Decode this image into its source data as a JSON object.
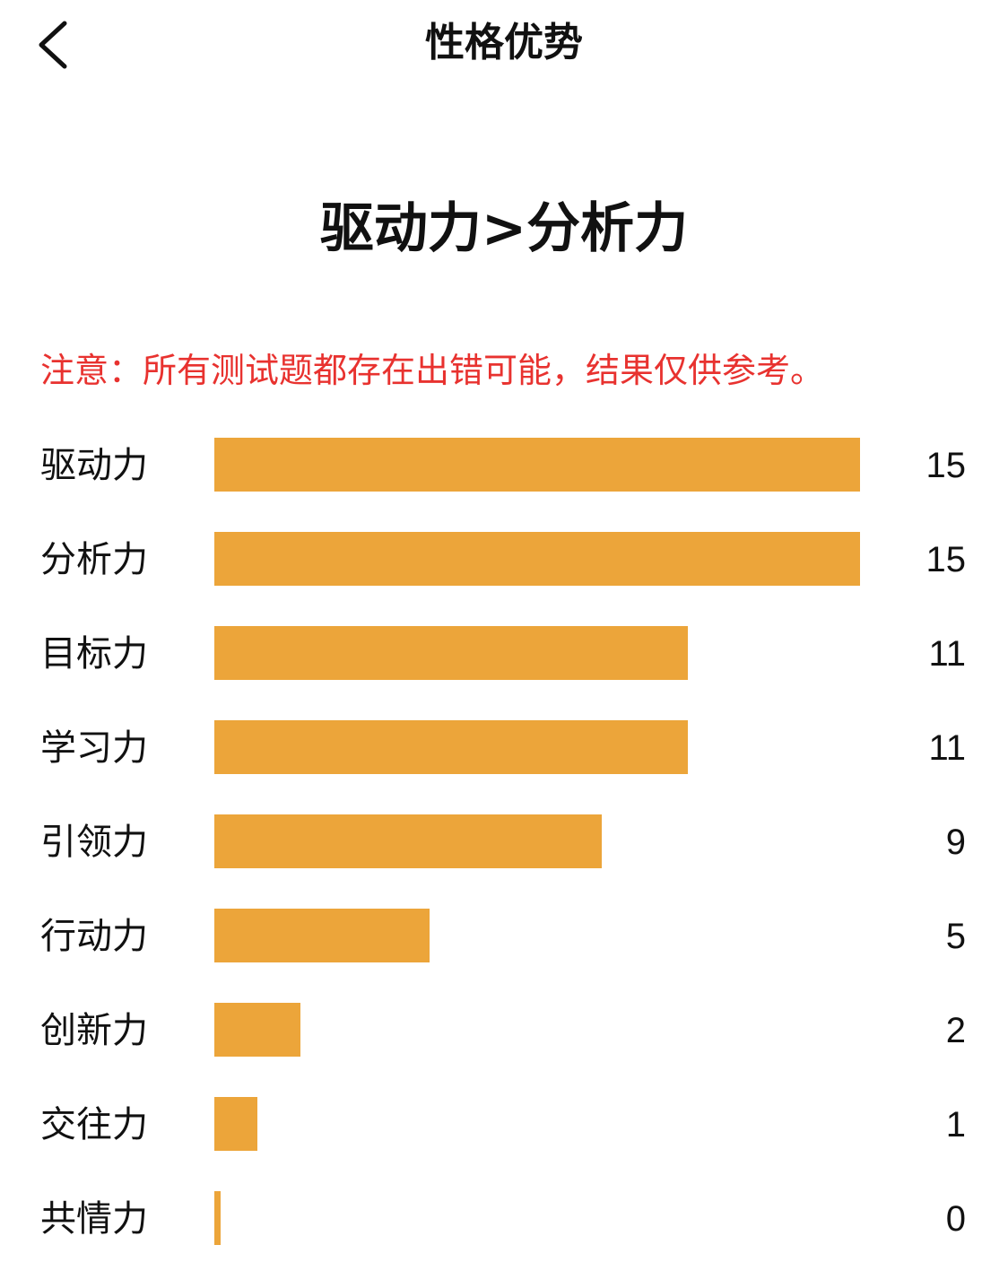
{
  "nav": {
    "title": "性格优势",
    "back_icon": "chevron-left-icon"
  },
  "headline": "驱动力>分析力",
  "notice": "注意：所有测试题都存在出错可能，结果仅供参考。",
  "colors": {
    "bar": "#eca53a",
    "notice": "#e8322f",
    "text": "#111111"
  },
  "chart_data": {
    "type": "bar",
    "orientation": "horizontal",
    "categories": [
      "驱动力",
      "分析力",
      "目标力",
      "学习力",
      "引领力",
      "行动力",
      "创新力",
      "交往力",
      "共情力"
    ],
    "values": [
      15,
      15,
      11,
      11,
      9,
      5,
      2,
      1,
      0
    ],
    "xlim": [
      0,
      15
    ],
    "grid": false,
    "legend": "none"
  }
}
